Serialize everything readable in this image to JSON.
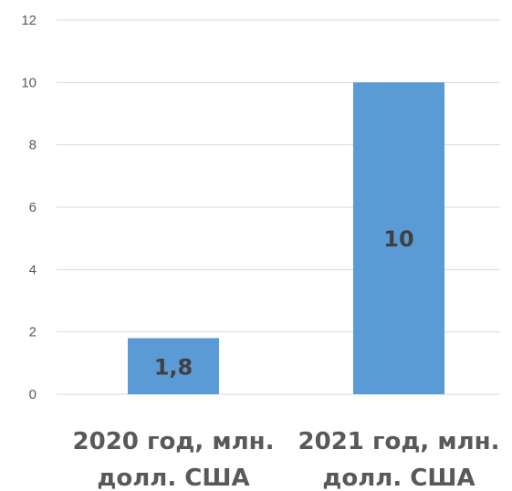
{
  "chart_data": {
    "type": "bar",
    "categories": [
      [
        "2020 год, млн.",
        "долл. США"
      ],
      [
        "2021 год, млн.",
        "долл. США"
      ]
    ],
    "values": [
      1.8,
      10
    ],
    "data_labels": [
      "1,8",
      "10"
    ],
    "ylim": [
      0,
      12
    ],
    "yticks": [
      0,
      2,
      4,
      6,
      8,
      10,
      12
    ],
    "grid": true,
    "legend": "none",
    "bar_color": "#5b9bd5"
  }
}
